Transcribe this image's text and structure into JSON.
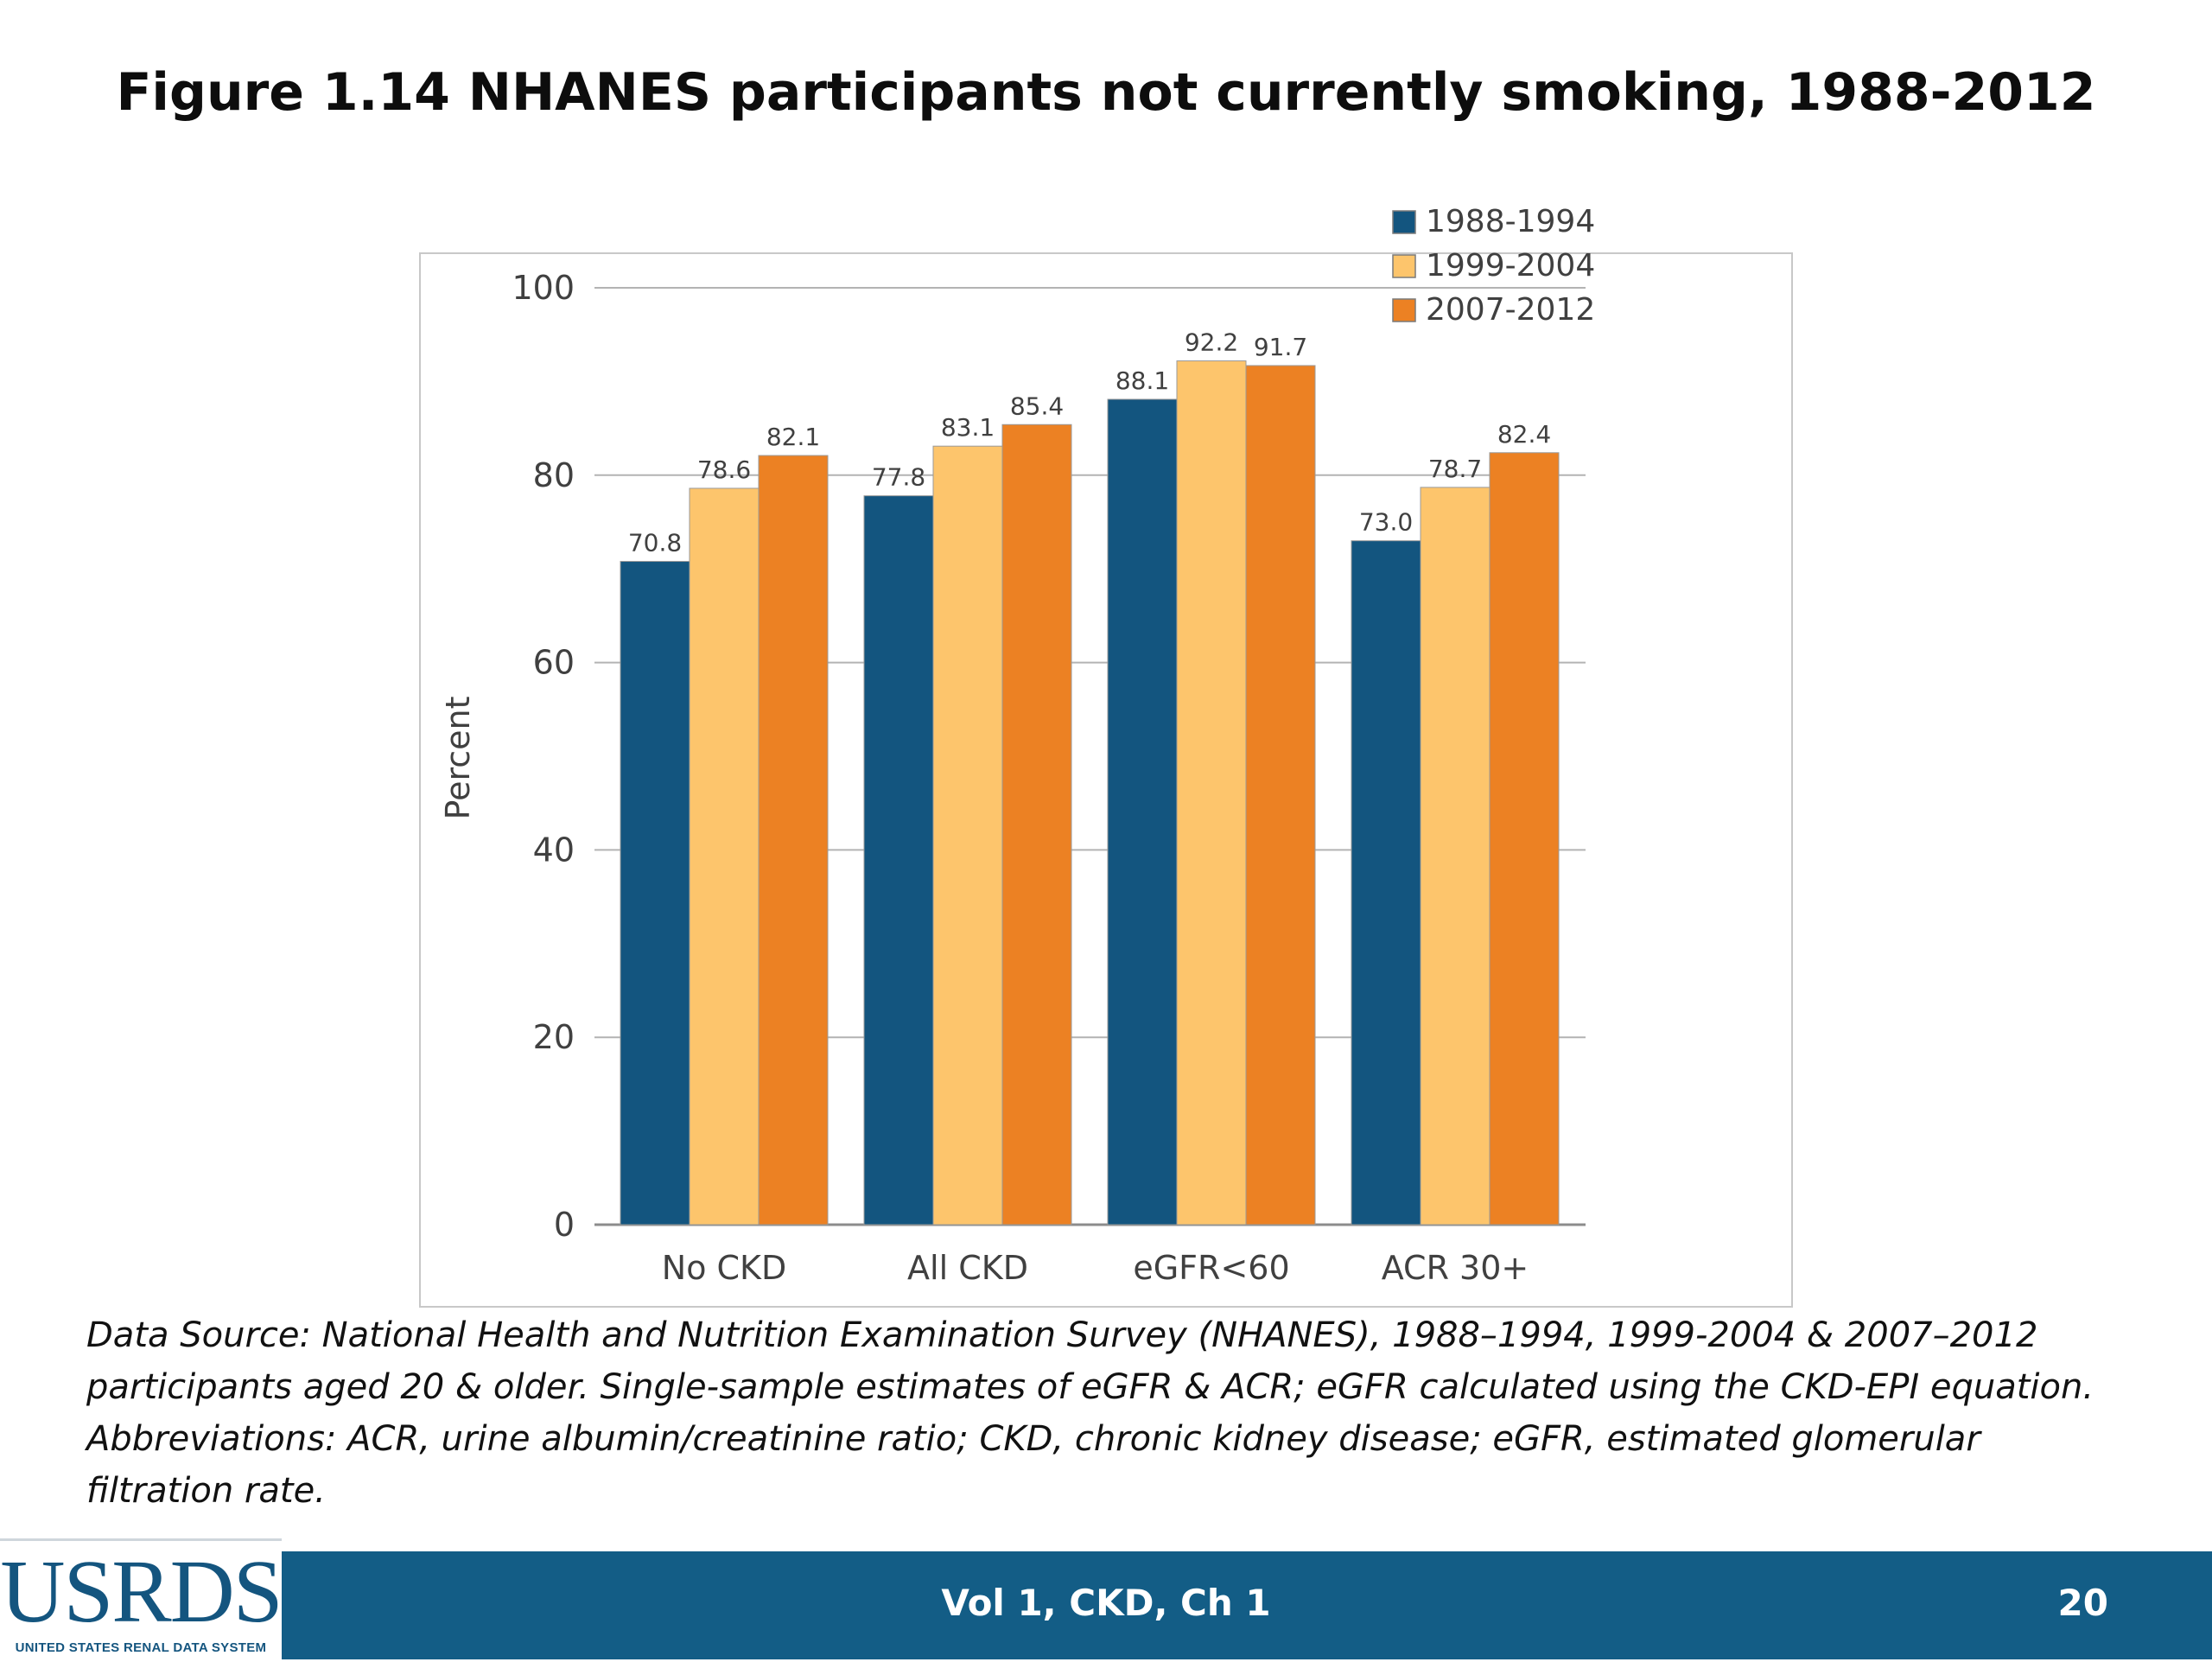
{
  "slide": {
    "title": "Figure 1.14 NHANES participants not currently smoking, 1988-2012",
    "caption_lines": [
      "Data Source: National Health and Nutrition Examination Survey (NHANES), 1988–1994, 1999-2004 & 2007–2012",
      "participants aged 20 & older. Single-sample estimates of eGFR & ACR; eGFR calculated using the CKD-EPI equation.",
      "Abbreviations: ACR, urine albumin/creatinine ratio; CKD, chronic kidney disease; eGFR, estimated glomerular",
      "filtration rate."
    ]
  },
  "footer": {
    "text": "Vol 1, CKD, Ch 1",
    "page_number": "20",
    "logo_text": "USRDS",
    "logo_tagline": "UNITED STATES RENAL DATA SYSTEM",
    "bar_color": "#135d86"
  },
  "chart_data": {
    "type": "bar",
    "categories": [
      "No CKD",
      "All CKD",
      "eGFR<60",
      "ACR 30+"
    ],
    "series": [
      {
        "name": "1988-1994",
        "color": "#13557f",
        "values": [
          70.8,
          77.8,
          88.1,
          73.0
        ],
        "labels": [
          "70.8",
          "77.8",
          "88.1",
          "73.0"
        ]
      },
      {
        "name": "1999-2004",
        "color": "#fdc56c",
        "values": [
          78.6,
          83.1,
          92.2,
          78.7
        ],
        "labels": [
          "78.6",
          "83.1",
          "92.2",
          "78.7"
        ]
      },
      {
        "name": "2007-2012",
        "color": "#ec8123",
        "values": [
          82.1,
          85.4,
          91.7,
          82.4
        ],
        "labels": [
          "82.1",
          "85.4",
          "91.7",
          "82.4"
        ]
      }
    ],
    "ylabel": "Percent",
    "ylim": [
      0,
      100
    ],
    "yticks": [
      0,
      20,
      40,
      60,
      80,
      100
    ],
    "grid": true,
    "legend": "top-right"
  }
}
